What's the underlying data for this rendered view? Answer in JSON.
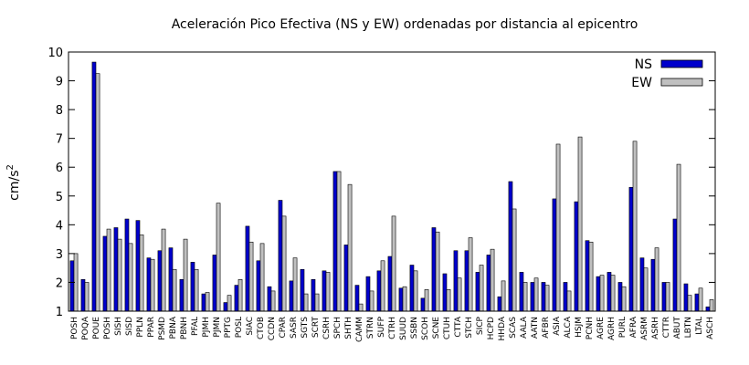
{
  "chart_data": {
    "type": "bar",
    "title": "Aceleración Pico Efectiva (NS y EW) ordenadas por distancia al epicentro",
    "ylabel_base": "cm/s",
    "ylabel_sup": "2",
    "xlabel": "",
    "ylim": [
      1,
      10
    ],
    "yticks": [
      1,
      2,
      3,
      4,
      5,
      6,
      7,
      8,
      9,
      10
    ],
    "grid": false,
    "legend_position": "top-right",
    "colors": {
      "NS": "#0000cc",
      "EW": "#c0c0c0"
    },
    "categories": [
      "POSH",
      "POQA",
      "POUE",
      "POSH",
      "SISH",
      "SISD",
      "PPLN",
      "PPAR",
      "PSMD",
      "PBNA",
      "PBNH",
      "PFAL",
      "PJMH",
      "PJMN",
      "PPTG",
      "POSL",
      "SIAC",
      "CTOB",
      "CCDN",
      "CPAR",
      "SASR",
      "SGTS",
      "SCRT",
      "CSRH",
      "SPCH",
      "SHTH",
      "CAMM",
      "STRN",
      "SUFP",
      "CTRH",
      "SUUD",
      "SSBN",
      "SCOH",
      "SCNE",
      "CTUH",
      "CTTA",
      "STCH",
      "SICP",
      "HCPD",
      "HHDA",
      "SCAS",
      "AALA",
      "AATN",
      "AFBR",
      "ASIA",
      "ALCA",
      "HSJM",
      "PCNH",
      "AGRE",
      "AGRH",
      "PURL",
      "AFRA",
      "ASRM",
      "ASRH",
      "CTTR",
      "ABUT",
      "LBTN",
      "LTAL",
      "ASCH"
    ],
    "series": [
      {
        "name": "NS",
        "values": [
          2.75,
          2.1,
          9.65,
          3.6,
          3.9,
          4.2,
          4.15,
          2.85,
          3.1,
          3.2,
          2.1,
          2.7,
          1.6,
          2.95,
          1.3,
          1.9,
          3.95,
          2.75,
          1.85,
          4.85,
          2.05,
          2.45,
          2.1,
          2.4,
          5.85,
          3.3,
          1.9,
          2.2,
          2.4,
          2.9,
          1.8,
          2.6,
          1.45,
          3.9,
          2.3,
          3.1,
          3.1,
          2.35,
          2.95,
          1.5,
          5.5,
          2.35,
          2.0,
          2.0,
          4.9,
          2.0,
          4.8,
          3.45,
          2.2,
          2.35,
          2.0,
          5.3,
          2.85,
          2.8,
          2.0,
          4.2,
          1.95,
          1.6,
          1.15
        ]
      },
      {
        "name": "EW",
        "values": [
          3.0,
          2.0,
          9.25,
          3.85,
          3.5,
          3.35,
          3.65,
          2.8,
          3.85,
          2.45,
          3.5,
          2.45,
          1.65,
          4.75,
          1.55,
          2.1,
          3.4,
          3.35,
          1.7,
          4.3,
          2.85,
          1.6,
          1.6,
          2.35,
          5.85,
          5.4,
          1.25,
          1.7,
          2.75,
          4.3,
          1.85,
          2.4,
          1.75,
          3.75,
          1.75,
          2.15,
          3.55,
          2.6,
          3.15,
          2.05,
          4.55,
          2.0,
          2.15,
          1.9,
          6.8,
          1.7,
          7.05,
          3.4,
          2.25,
          2.25,
          1.85,
          6.9,
          2.5,
          3.2,
          2.0,
          6.1,
          1.55,
          1.8,
          1.4
        ]
      }
    ]
  }
}
